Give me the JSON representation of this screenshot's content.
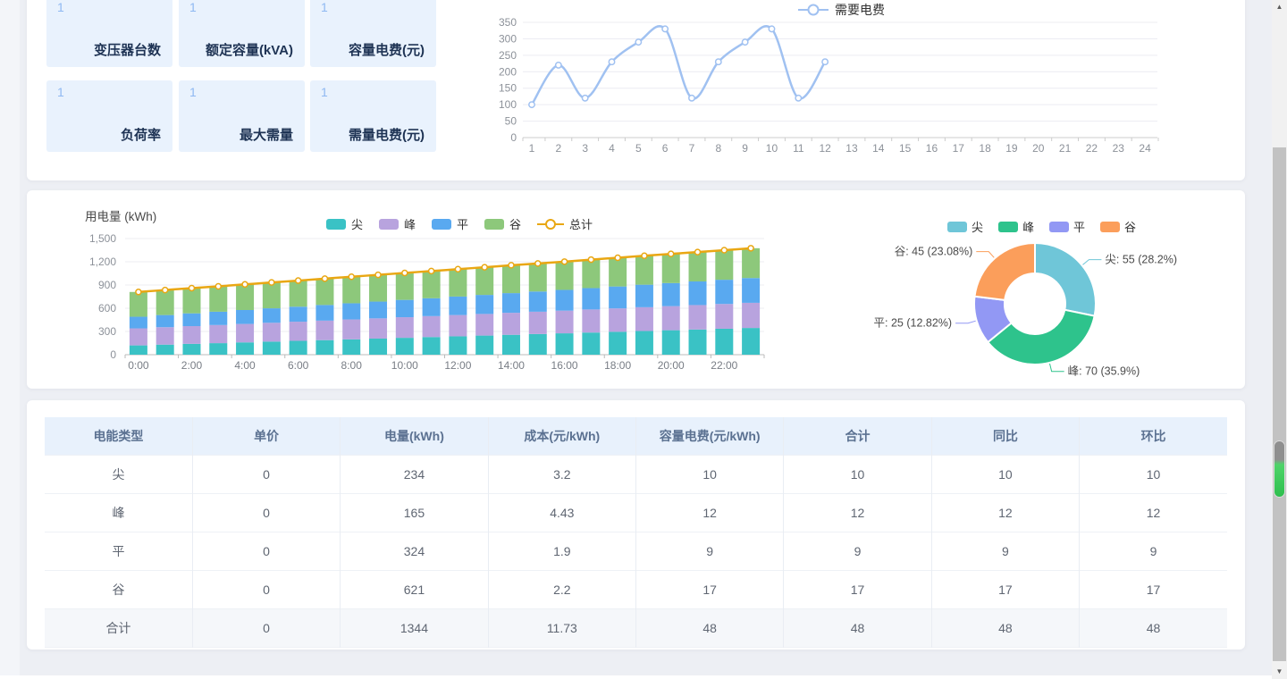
{
  "stats": {
    "cards": [
      {
        "value": "1",
        "label": "变压器台数"
      },
      {
        "value": "1",
        "label": "额定容量(kVA)"
      },
      {
        "value": "1",
        "label": "容量电费(元)"
      },
      {
        "value": "1",
        "label": "负荷率"
      },
      {
        "value": "1",
        "label": "最大需量"
      },
      {
        "value": "1",
        "label": "需量电费(元)"
      }
    ],
    "tile_bg": "#e9f2fd",
    "value_color": "#8fb9f2",
    "label_color": "#1e3354"
  },
  "chart_data": [
    {
      "id": "demand-line",
      "type": "line",
      "title": "",
      "legend": [
        "需要电费"
      ],
      "legend_position": "top-center",
      "x": [
        1,
        2,
        3,
        4,
        5,
        6,
        7,
        8,
        9,
        10,
        11,
        12,
        13,
        14,
        15,
        16,
        17,
        18,
        19,
        20,
        21,
        22,
        23,
        24
      ],
      "series": [
        {
          "name": "需要电费",
          "color": "#a0c1f1",
          "x": [
            1,
            2,
            3,
            4,
            5,
            6,
            7,
            8,
            9,
            10,
            11,
            12
          ],
          "values": [
            100,
            220,
            120,
            230,
            290,
            330,
            120,
            230,
            290,
            330,
            120,
            230
          ]
        }
      ],
      "ylim": [
        0,
        350
      ],
      "ytick_step": 50,
      "grid": true
    },
    {
      "id": "usage-stacked",
      "type": "bar",
      "title": "用电量 (kWh)",
      "stacked": true,
      "categories": [
        "0:00",
        "1:00",
        "2:00",
        "3:00",
        "4:00",
        "5:00",
        "6:00",
        "7:00",
        "8:00",
        "9:00",
        "10:00",
        "11:00",
        "12:00",
        "13:00",
        "14:00",
        "15:00",
        "16:00",
        "17:00",
        "18:00",
        "19:00",
        "20:00",
        "21:00",
        "22:00",
        "23:00"
      ],
      "xlabel_every": 2,
      "series": [
        {
          "name": "尖",
          "color": "#3ac2c5",
          "values": [
            120,
            130,
            140,
            149,
            159,
            169,
            179,
            188,
            198,
            208,
            218,
            228,
            237,
            247,
            257,
            267,
            276,
            286,
            296,
            306,
            316,
            325,
            335,
            345
          ]
        },
        {
          "name": "峰",
          "color": "#b8a3de",
          "values": [
            220,
            225,
            229,
            234,
            238,
            243,
            247,
            252,
            257,
            261,
            266,
            270,
            275,
            279,
            284,
            288,
            293,
            298,
            302,
            307,
            311,
            316,
            320,
            325
          ]
        },
        {
          "name": "平",
          "color": "#59a9f0",
          "values": [
            150,
            157,
            165,
            172,
            180,
            187,
            194,
            202,
            209,
            217,
            224,
            231,
            239,
            246,
            254,
            261,
            268,
            276,
            283,
            291,
            298,
            305,
            313,
            320
          ]
        },
        {
          "name": "谷",
          "color": "#8dc87b",
          "values": [
            320,
            323,
            326,
            328,
            331,
            334,
            337,
            340,
            343,
            345,
            348,
            351,
            354,
            357,
            360,
            362,
            365,
            368,
            371,
            374,
            377,
            379,
            382,
            385
          ]
        }
      ],
      "line_series": {
        "name": "总计",
        "color": "#e9a713",
        "values": [
          810,
          835,
          860,
          883,
          908,
          933,
          957,
          982,
          1007,
          1031,
          1056,
          1080,
          1105,
          1129,
          1155,
          1178,
          1202,
          1228,
          1252,
          1278,
          1302,
          1325,
          1350,
          1375
        ]
      },
      "ylim": [
        0,
        1500
      ],
      "ytick_step": 300,
      "grid": true
    },
    {
      "id": "energy-donut",
      "type": "pie",
      "donut": true,
      "legend": [
        "尖",
        "峰",
        "平",
        "谷"
      ],
      "slices": [
        {
          "name": "尖",
          "value": 55,
          "pct": "28.2%",
          "label": "尖: 55 (28.2%)",
          "color": "#6fc6d8"
        },
        {
          "name": "峰",
          "value": 70,
          "pct": "35.9%",
          "label": "峰: 70 (35.9%)",
          "color": "#2ec38c"
        },
        {
          "name": "平",
          "value": 25,
          "pct": "12.82%",
          "label": "平: 25 (12.82%)",
          "color": "#9298f4"
        },
        {
          "name": "谷",
          "value": 45,
          "pct": "23.08%",
          "label": "谷: 45 (23.08%)",
          "color": "#fb9e5b"
        }
      ]
    }
  ],
  "table": {
    "headers": [
      "电能类型",
      "单价",
      "电量(kWh)",
      "成本(元/kWh)",
      "容量电费(元/kWh)",
      "合计",
      "同比",
      "环比"
    ],
    "rows": [
      [
        "尖",
        "0",
        "234",
        "3.2",
        "10",
        "10",
        "10",
        "10"
      ],
      [
        "峰",
        "0",
        "165",
        "4.43",
        "12",
        "12",
        "12",
        "12"
      ],
      [
        "平",
        "0",
        "324",
        "1.9",
        "9",
        "9",
        "9",
        "9"
      ],
      [
        "谷",
        "0",
        "621",
        "2.2",
        "17",
        "17",
        "17",
        "17"
      ]
    ],
    "footer": [
      "合计",
      "0",
      "1344",
      "11.73",
      "48",
      "48",
      "48",
      "48"
    ]
  },
  "scrollbar": {
    "up_icon": "▲",
    "down_icon": "▼"
  }
}
